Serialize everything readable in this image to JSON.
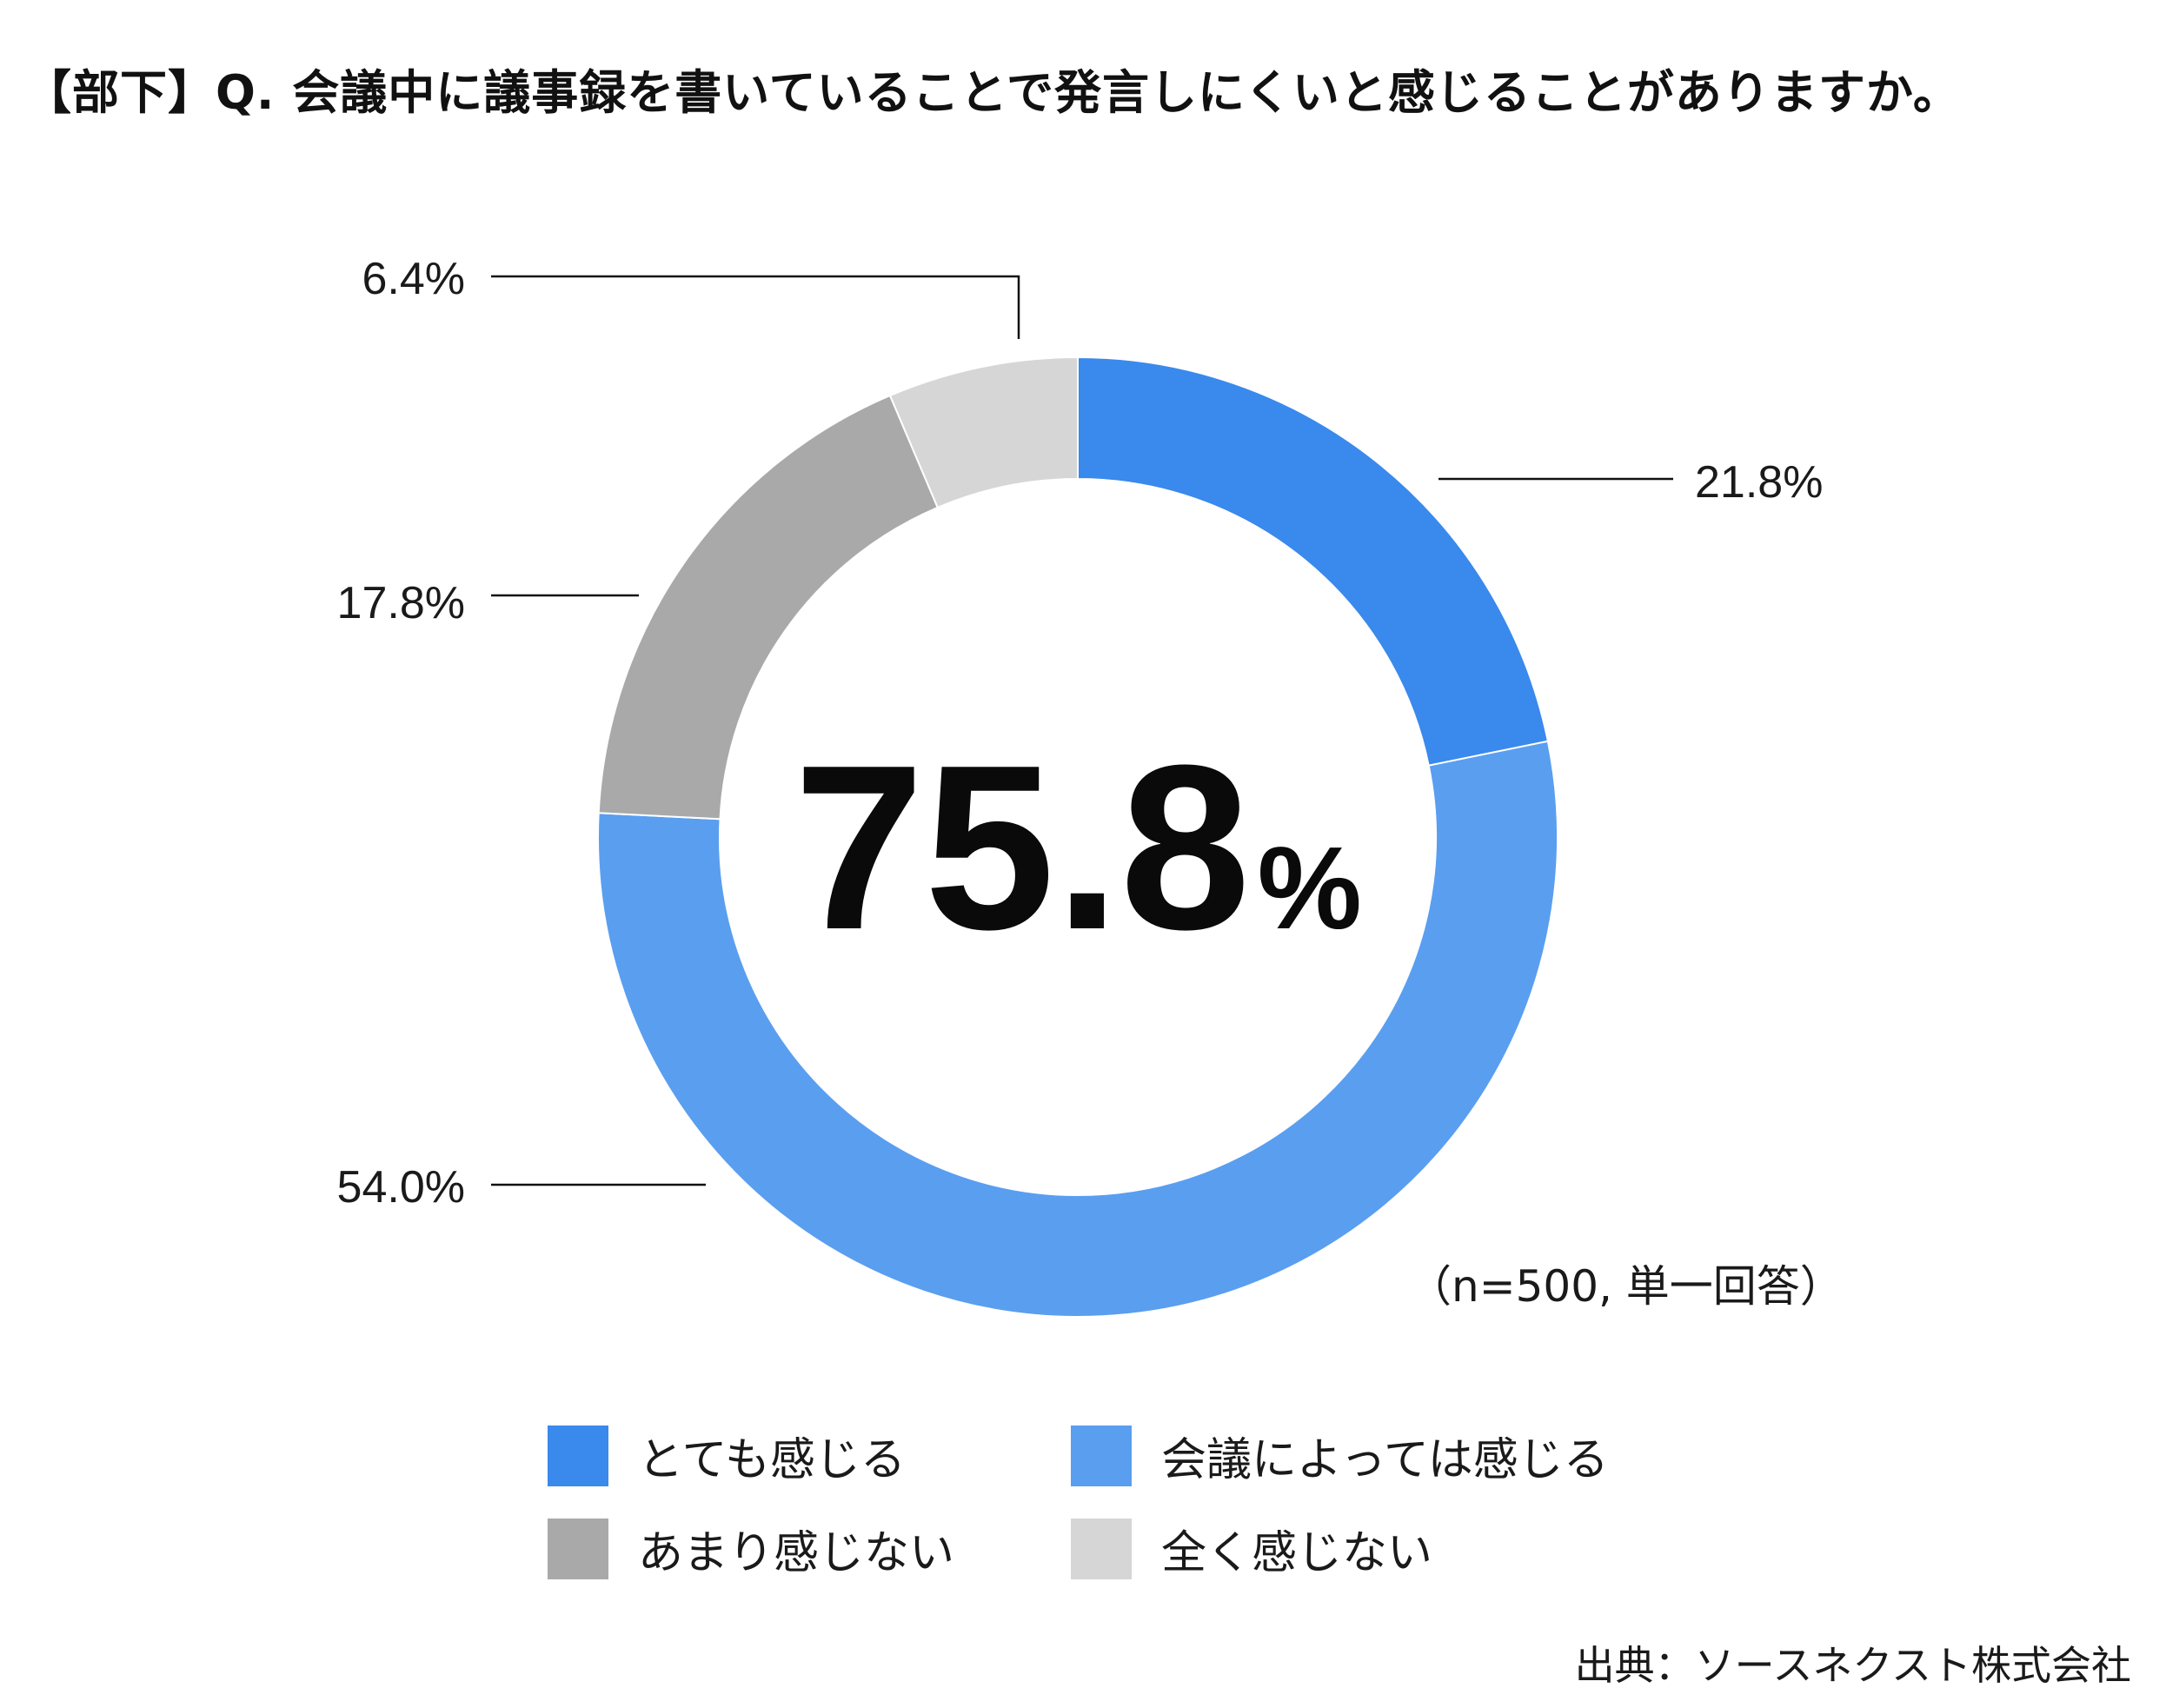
{
  "title": "【部下】Q. 会議中に議事録を書いていることで発言しにくいと感じることがありますか。",
  "center_value": "75.8",
  "center_unit": "%",
  "note": "（n=500, 単一回答）",
  "source": "出典：ソースネクスト株式会社",
  "chart_data": {
    "type": "pie",
    "donut": true,
    "title": "【部下】Q. 会議中に議事録を書いていることで発言しにくいと感じることがありますか。",
    "unit": "%",
    "categories": [
      "とても感じる",
      "会議によっては感じる",
      "あまり感じない",
      "全く感じない"
    ],
    "values": [
      21.8,
      54.0,
      17.8,
      6.4
    ],
    "labels": [
      "21.8%",
      "54.0%",
      "17.8%",
      "6.4%"
    ],
    "colors": [
      "#3a89ec",
      "#5a9ef0",
      "#a9a9aa",
      "#d6d6d7"
    ],
    "legend_position": "bottom"
  }
}
